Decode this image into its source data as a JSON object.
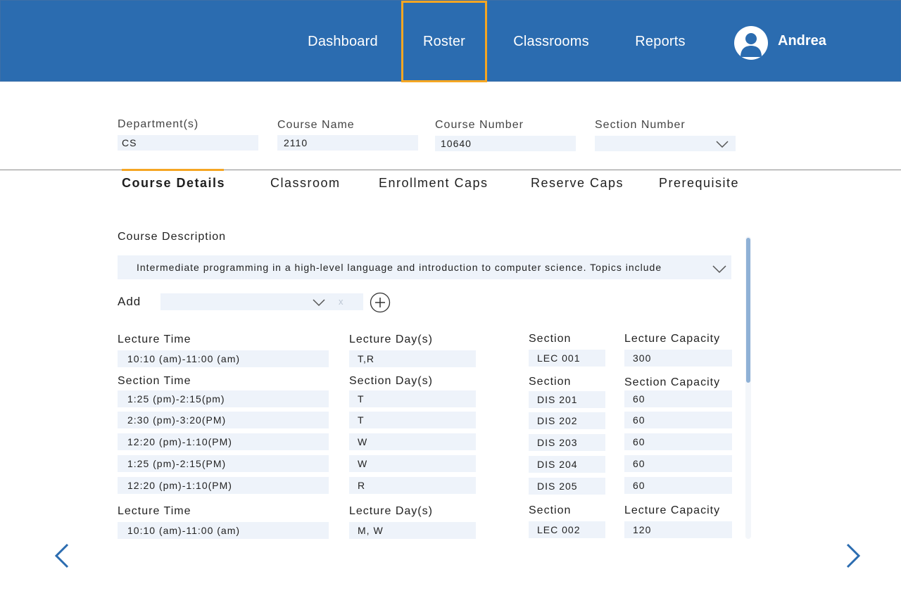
{
  "nav": {
    "items": [
      {
        "label": "Dashboard"
      },
      {
        "label": "Roster"
      },
      {
        "label": "Classrooms"
      },
      {
        "label": "Reports"
      }
    ],
    "active": "Roster",
    "user_name": "Andrea"
  },
  "filters": {
    "department": {
      "label": "Department(s)",
      "value": "CS"
    },
    "course_name": {
      "label": "Course Name",
      "value": "2110"
    },
    "course_number": {
      "label": "Course Number",
      "value": "10640"
    },
    "section_number": {
      "label": "Section Number",
      "value": ""
    }
  },
  "tabs": [
    {
      "label": "Course Details"
    },
    {
      "label": "Classroom"
    },
    {
      "label": "Enrollment Caps"
    },
    {
      "label": "Reserve Caps"
    },
    {
      "label": "Prerequisite"
    }
  ],
  "details": {
    "description_label": "Course Description",
    "description": "Intermediate programming in a high-level language and introduction to computer science. Topics include",
    "add_label": "Add",
    "add_clear": "x",
    "lecture1": {
      "time_label": "Lecture Time",
      "time": "10:10 (am)-11:00 (am)",
      "days_label": "Lecture Day(s)",
      "days": "T,R",
      "section_label": "Section",
      "section": "LEC 001",
      "capacity_label": "Lecture Capacity",
      "capacity": "300"
    },
    "section_headers": {
      "time": "Section Time",
      "days": "Section Day(s)",
      "section": "Section",
      "capacity": "Section Capacity"
    },
    "sections": [
      {
        "time": "1:25 (pm)-2:15(pm)",
        "days": "T",
        "section": "DIS 201",
        "capacity": "60"
      },
      {
        "time": "2:30 (pm)-3:20(PM)",
        "days": "T",
        "section": "DIS 202",
        "capacity": "60"
      },
      {
        "time": "12:20 (pm)-1:10(PM)",
        "days": "W",
        "section": "DIS 203",
        "capacity": "60"
      },
      {
        "time": "1:25 (pm)-2:15(PM)",
        "days": "W",
        "section": "DIS 204",
        "capacity": "60"
      },
      {
        "time": "12:20 (pm)-1:10(PM)",
        "days": "R",
        "section": "DIS 205",
        "capacity": "60"
      }
    ],
    "lecture2": {
      "time_label": "Lecture Time",
      "time": "10:10 (am)-11:00 (am)",
      "days_label": "Lecture Day(s)",
      "days": "M, W",
      "section_label": "Section",
      "section": "LEC 002",
      "capacity_label": "Lecture Capacity",
      "capacity": "120"
    }
  },
  "colors": {
    "header": "#2b6cb0",
    "accent": "#f5a623",
    "field_bg": "#eef3fa"
  },
  "icons": [
    "user-avatar-icon",
    "chevron-down-icon",
    "plus-circle-icon",
    "arrow-left-icon",
    "arrow-right-icon"
  ]
}
